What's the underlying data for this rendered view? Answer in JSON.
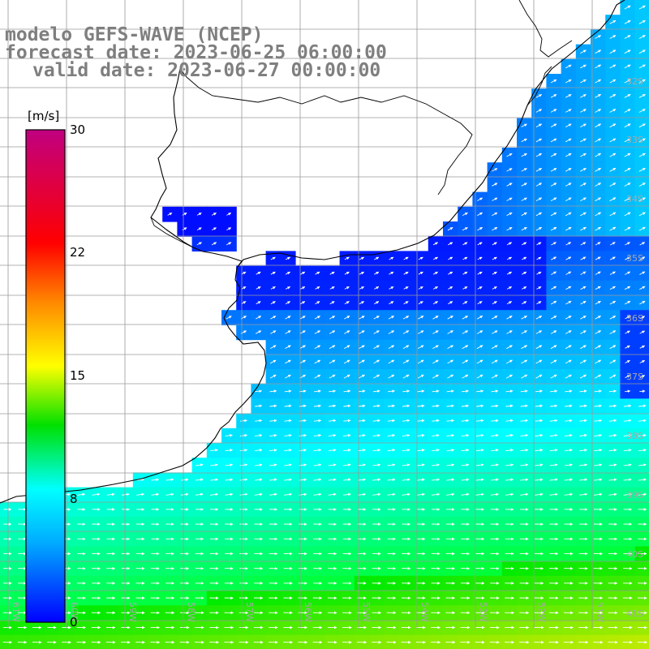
{
  "titles": {
    "model": "modelo GEFS-WAVE (NCEP)",
    "forecast": "forecast date: 2023-06-25 06:00:00",
    "valid": "valid date: 2023-06-27 00:00:00"
  },
  "colorbar": {
    "unit": "[m/s]",
    "ticks": [
      "30",
      "22",
      "15",
      "8",
      "0"
    ],
    "stops": [
      "#0000ff",
      "#00aaff",
      "#00ffff",
      "#00ff00",
      "#ffff00",
      "#ff8800",
      "#ff0000",
      "#c00080"
    ]
  },
  "lat_labels": [
    "32S",
    "33S",
    "34S",
    "35S",
    "36S",
    "37S",
    "38S",
    "39S",
    "40S",
    "41S"
  ],
  "lon_labels": [
    "61W",
    "60W",
    "59W",
    "58W",
    "57W",
    "56W",
    "55W",
    "54W",
    "53W",
    "52W",
    "51W"
  ],
  "colors": {
    "land": "#ffffff",
    "grid": "#9a9a9a",
    "coast": "#000000"
  }
}
